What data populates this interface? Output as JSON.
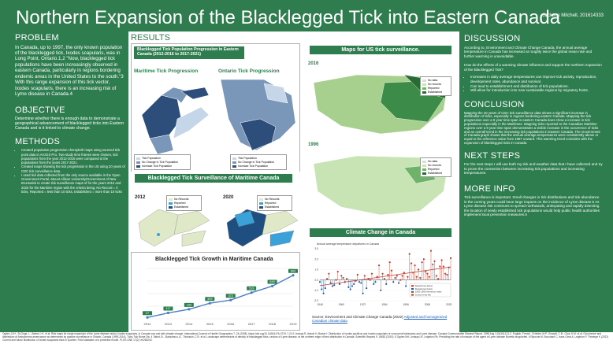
{
  "header": {
    "title": "Northern Expansion of the Blacklegged Tick into Eastern Canada",
    "author": "Jackson Mitchell, 201614333"
  },
  "problem": {
    "heading": "PROBLEM",
    "body": "In Canada, up to 1997, the only known population of the blacklegged tick, Ixodes scapularis, was in Long Point, Ontario.1,2 \"Now, blacklegged tick populations have been increasingly observed in eastern Canada, particularly in regions bordering endemic areas in the United States to the south.\"3 With this range expansion of this tick vector, Ixodes scapularis, there is an increasing risk of Lyme disease in Canada.4"
  },
  "objective": {
    "heading": "OBJECTIVE",
    "body": "Determine whether there is enough data to demonstrate a geographical advancement of blacklegged ticks into Eastern Canada and is it linked to climate change."
  },
  "methods": {
    "heading": "METHODS",
    "items": [
      "Created population progression choropleth maps using sourced tick point data in ArcGIS Pro. Two study time frames were chosen, tick populations from the year 2012-2016 were compared to the populations from the years 2017-2021.",
      "Created maps showing the tick progression in the US using 20 years of CDC tick surveillance data.",
      "I used tick data collected from the only source available in the Open Government Portal, Mount Allison University/Government of New Brunswick to create tick surveillance maps of for the years 2012 and 2020 for the Maritime region with the criteria being; No Record = 0 ticks, Reported = less than 10 ticks, Established = more than 10 ticks"
    ]
  },
  "results": {
    "heading": "RESULTS",
    "progression_title": "Blacklegged Tick Population Progression in Eastern Canada (2012-2016 to 2017-2021)",
    "maritime_label": "Maritime Tick Progression",
    "ontario_label": "Ontario Tick Progression",
    "legend_items": [
      "Tick Population",
      "No Change in Tick Population",
      "Increase Tick Population"
    ],
    "us_maps_title": "Maps for US tick surveillance.",
    "year_2016": "2016",
    "year_1996": "1996",
    "us_legend": [
      "No data",
      "No records",
      "Reported",
      "Established"
    ],
    "surveillance_title": "Blacklegged Tick Surveillance of Maritime Canada",
    "year_2012": "2012",
    "year_2020": "2020",
    "maritime_legend": [
      "No Records",
      "Reported",
      "Established"
    ],
    "growth_title": "Blacklegged Tick Growth in Maritime Canada",
    "climate_title": "Climate Change in Canada",
    "climate_caption": "Source: Environment and Climate Change Canada (2022)",
    "climate_link": "Adjusted and homogenized Canadian climate data"
  },
  "discussion": {
    "heading": "DISCUSSION",
    "intro": "According to, Environment and Climate Change Canada, the annual average temperature in Canada has increased at roughly twice the global mean rate and further warming is unavoidable.",
    "question": "How do the effects of a warming climate influence and support the northern expansion of the Blacklegged Tick?",
    "items": [
      "Increases in daily average temperatures can improve tick activity, reproduction, development rates, abundance and survival.",
      "Can lead to establishment and distribution of tick populations.",
      "Will allow for introduction into new sustainable regions by migratory hosts."
    ]
  },
  "conclusion": {
    "heading": "CONCLUSION",
    "body": "Mapping the 20 years of CDC tick surveillance data shows a significant increase in distribution of ticks, especially in regions bordering eastern Canada. Mapping the tick progression over a 9 year time span in eastern Canada does show a increase in tick populations especially in the Maritimes. Mapping ticks reported to the Canadian Maritime regions over a 9 year time span demonstrates a visible increase in the occurrence of ticks and an overall trend in the increasing tick populations in Eastern Canada. The Government of Canada graph shows that the annual average temperatures were consistently above or equal to the reference value from 1997 onward. This warming trend coincides with the expansion of blacklegged ticks in Canada."
  },
  "next_steps": {
    "heading": "NEXT STEPS",
    "body": "For the next steps I will use both my tick and weather data that I have collected and try to prove the connection between increasing tick populations and increasing temperatures."
  },
  "more_info": {
    "heading": "MORE INFO",
    "body": "Tick surveillance is important. Small changes in tick distributions and tick abundance in the coming years could have large impacts on the incidence of Lyme disease.5 As Lyme disease risk continues to spread northwards, anticipating and rapidly detecting the location of newly established tick populations would help public health authorities implement local prevention measures.6"
  },
  "references": {
    "text": "Ogden, N.H., St-Onge, L., Barker, I.K. et al. Risk maps for range expansion of the Lyme disease vector, Ixodes scapularis, in Canada now and with climate change. International Journal of Health Geographics 7, 24 (2008). https://doi.org/10.1186/1476-072X-7-24 2 Lindsay R, Artsob H, Barker I: Distribution of Ixodes pacificus and Ixodes scapularis re concurrent babesiosis and Lyme disease. Canada Communicable Disease Report. 1998 Aug 1;24(15):121-2. English, French. 3 Nelder, M.P., Russell, C.B., Clow, K.M. et al. Occurrence and distribution of Ambylomma americanum as determined by passive surveillance in Ontario, Canada (1999-2016). Ticks Tick Borne Dis. 4 Talbot, B., Slatculescu, A., Thickstun, C.R. et al. Landscape determinants of density of blacklegged ticks, vectors of Lyme disease, at the northern edge of their distribution in Canada. Scientific Reports 9, 16652 (2019). 5 Ogden NH, Lindsay LR, Leighton PA: Predicting the rate of invasion of the agent of Lyme disease Borrelia burgdorferi. 6 Ripoche M, Bouchard C, Irace-Cima A, Leighton P, Thivierge K (2022) Current and future distribution of Ixodes scapularis ticks in Quebec: Field validation of a predictive model. PLOS ONE 17(2): e0263243."
  },
  "chart_data": [
    {
      "type": "line",
      "title": "Blacklegged Tick Growth in Maritime Canada",
      "x": [
        "2012",
        "2013",
        "2014",
        "2015",
        "2016",
        "2017",
        "2018",
        "2019"
      ],
      "values": [
        27,
        117,
        189,
        309,
        372,
        519,
        649,
        863
      ],
      "data_labels": [
        "27",
        "117",
        "189",
        "309",
        "372",
        "519",
        "649",
        "863"
      ],
      "ylim": [
        0,
        1000
      ],
      "color": "#4a7fc1"
    },
    {
      "type": "scatter",
      "title": "Annual average temperature departures in Canada",
      "x_ticks": [
        "1948",
        "1960",
        "1972",
        "1984",
        "1996",
        "2008",
        "2020"
      ],
      "y_ticks": [
        "3.0",
        "2.0",
        "1.0",
        "0.0",
        "-1.0",
        "-2.0"
      ],
      "ylim": [
        -2,
        3
      ],
      "legend": [
        "Departures above",
        "Departures below",
        "1961-1990 reference value",
        "Linear trend line"
      ],
      "colors": {
        "above": "#c0392b",
        "below": "#2c5aa0",
        "trend": "#c0392b"
      },
      "points": [
        {
          "x": 1948,
          "y": -0.2
        },
        {
          "x": 1949,
          "y": -0.9
        },
        {
          "x": 1950,
          "y": -1.3
        },
        {
          "x": 1951,
          "y": -0.8
        },
        {
          "x": 1952,
          "y": 0.1
        },
        {
          "x": 1953,
          "y": 0.6
        },
        {
          "x": 1954,
          "y": -0.3
        },
        {
          "x": 1955,
          "y": -0.6
        },
        {
          "x": 1956,
          "y": -0.5
        },
        {
          "x": 1957,
          "y": 0.0
        },
        {
          "x": 1958,
          "y": 0.8
        },
        {
          "x": 1959,
          "y": -0.4
        },
        {
          "x": 1960,
          "y": 0.4
        },
        {
          "x": 1961,
          "y": 0.2
        },
        {
          "x": 1962,
          "y": -0.2
        },
        {
          "x": 1963,
          "y": 0.1
        },
        {
          "x": 1964,
          "y": -0.7
        },
        {
          "x": 1965,
          "y": -0.9
        },
        {
          "x": 1966,
          "y": -0.6
        },
        {
          "x": 1967,
          "y": -0.4
        },
        {
          "x": 1968,
          "y": -0.1
        },
        {
          "x": 1969,
          "y": 0.5
        },
        {
          "x": 1970,
          "y": -0.2
        },
        {
          "x": 1971,
          "y": -0.3
        },
        {
          "x": 1972,
          "y": -1.3
        },
        {
          "x": 1973,
          "y": 0.4
        },
        {
          "x": 1974,
          "y": -0.8
        },
        {
          "x": 1975,
          "y": 0.1
        },
        {
          "x": 1976,
          "y": 0.0
        },
        {
          "x": 1977,
          "y": 0.6
        },
        {
          "x": 1978,
          "y": -0.4
        },
        {
          "x": 1979,
          "y": -0.2
        },
        {
          "x": 1980,
          "y": 0.3
        },
        {
          "x": 1981,
          "y": 1.4
        },
        {
          "x": 1982,
          "y": -1.0
        },
        {
          "x": 1983,
          "y": 0.6
        },
        {
          "x": 1984,
          "y": 0.1
        },
        {
          "x": 1985,
          "y": -0.4
        },
        {
          "x": 1986,
          "y": 0.5
        },
        {
          "x": 1987,
          "y": 1.7
        },
        {
          "x": 1988,
          "y": 0.9
        },
        {
          "x": 1989,
          "y": -0.2
        },
        {
          "x": 1990,
          "y": 0.2
        },
        {
          "x": 1991,
          "y": 0.4
        },
        {
          "x": 1992,
          "y": -0.3
        },
        {
          "x": 1993,
          "y": 0.0
        },
        {
          "x": 1994,
          "y": 0.4
        },
        {
          "x": 1995,
          "y": 0.7
        },
        {
          "x": 1996,
          "y": -0.6
        },
        {
          "x": 1997,
          "y": 0.3
        },
        {
          "x": 1998,
          "y": 2.5
        },
        {
          "x": 1999,
          "y": 1.6
        },
        {
          "x": 2000,
          "y": 0.7
        },
        {
          "x": 2001,
          "y": 1.4
        },
        {
          "x": 2002,
          "y": 0.3
        },
        {
          "x": 2003,
          "y": 1.0
        },
        {
          "x": 2004,
          "y": 0.2
        },
        {
          "x": 2005,
          "y": 1.7
        },
        {
          "x": 2006,
          "y": 2.0
        },
        {
          "x": 2007,
          "y": 0.8
        },
        {
          "x": 2008,
          "y": 0.6
        },
        {
          "x": 2009,
          "y": 0.3
        },
        {
          "x": 2010,
          "y": 2.8
        },
        {
          "x": 2011,
          "y": 1.5
        },
        {
          "x": 2012,
          "y": 1.8
        },
        {
          "x": 2013,
          "y": 0.4
        },
        {
          "x": 2014,
          "y": 0.1
        },
        {
          "x": 2015,
          "y": 1.3
        },
        {
          "x": 2016,
          "y": 1.9
        },
        {
          "x": 2017,
          "y": 1.3
        },
        {
          "x": 2018,
          "y": 0.6
        },
        {
          "x": 2019,
          "y": 0.5
        },
        {
          "x": 2020,
          "y": 1.2
        },
        {
          "x": 2021,
          "y": 2.1
        }
      ],
      "trend": {
        "x": [
          1948,
          2021
        ],
        "y": [
          -0.55,
          1.25
        ]
      }
    }
  ]
}
